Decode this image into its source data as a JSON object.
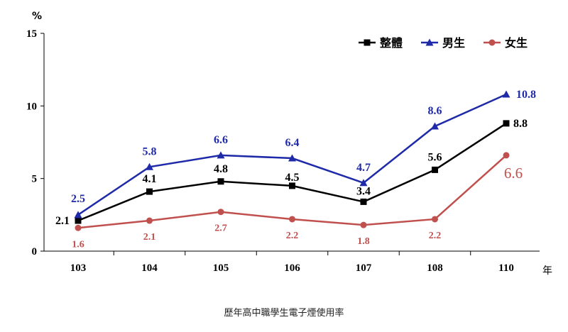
{
  "caption": "歷年高中職學生電子煙使用率",
  "chart_data": {
    "type": "line",
    "title": "",
    "ylabel": "%",
    "xlabel": "年",
    "ylim": [
      0,
      15
    ],
    "yticks": [
      0,
      5,
      10,
      15
    ],
    "categories": [
      "103",
      "104",
      "105",
      "106",
      "107",
      "108",
      "110"
    ],
    "legend_position": "top-right",
    "grid": false,
    "series": [
      {
        "name": "整體",
        "color": "#000000",
        "marker": "square",
        "values": [
          2.1,
          4.1,
          4.8,
          4.5,
          3.4,
          5.6,
          8.8
        ],
        "labels": [
          "2.1",
          "4.1",
          "4.8",
          "4.5",
          "3.4",
          "5.6",
          "8.8"
        ]
      },
      {
        "name": "男生",
        "color": "#1f2aa8",
        "marker": "triangle",
        "values": [
          2.5,
          5.8,
          6.6,
          6.4,
          4.7,
          8.6,
          10.8
        ],
        "labels": [
          "2.5",
          "5.8",
          "6.6",
          "6.4",
          "4.7",
          "8.6",
          "10.8"
        ]
      },
      {
        "name": "女生",
        "color": "#c0504d",
        "marker": "circle",
        "values": [
          1.6,
          2.1,
          2.7,
          2.2,
          1.8,
          2.2,
          6.6
        ],
        "labels": [
          "1.6",
          "2.1",
          "2.7",
          "2.2",
          "1.8",
          "2.2",
          "6.6"
        ]
      }
    ]
  }
}
